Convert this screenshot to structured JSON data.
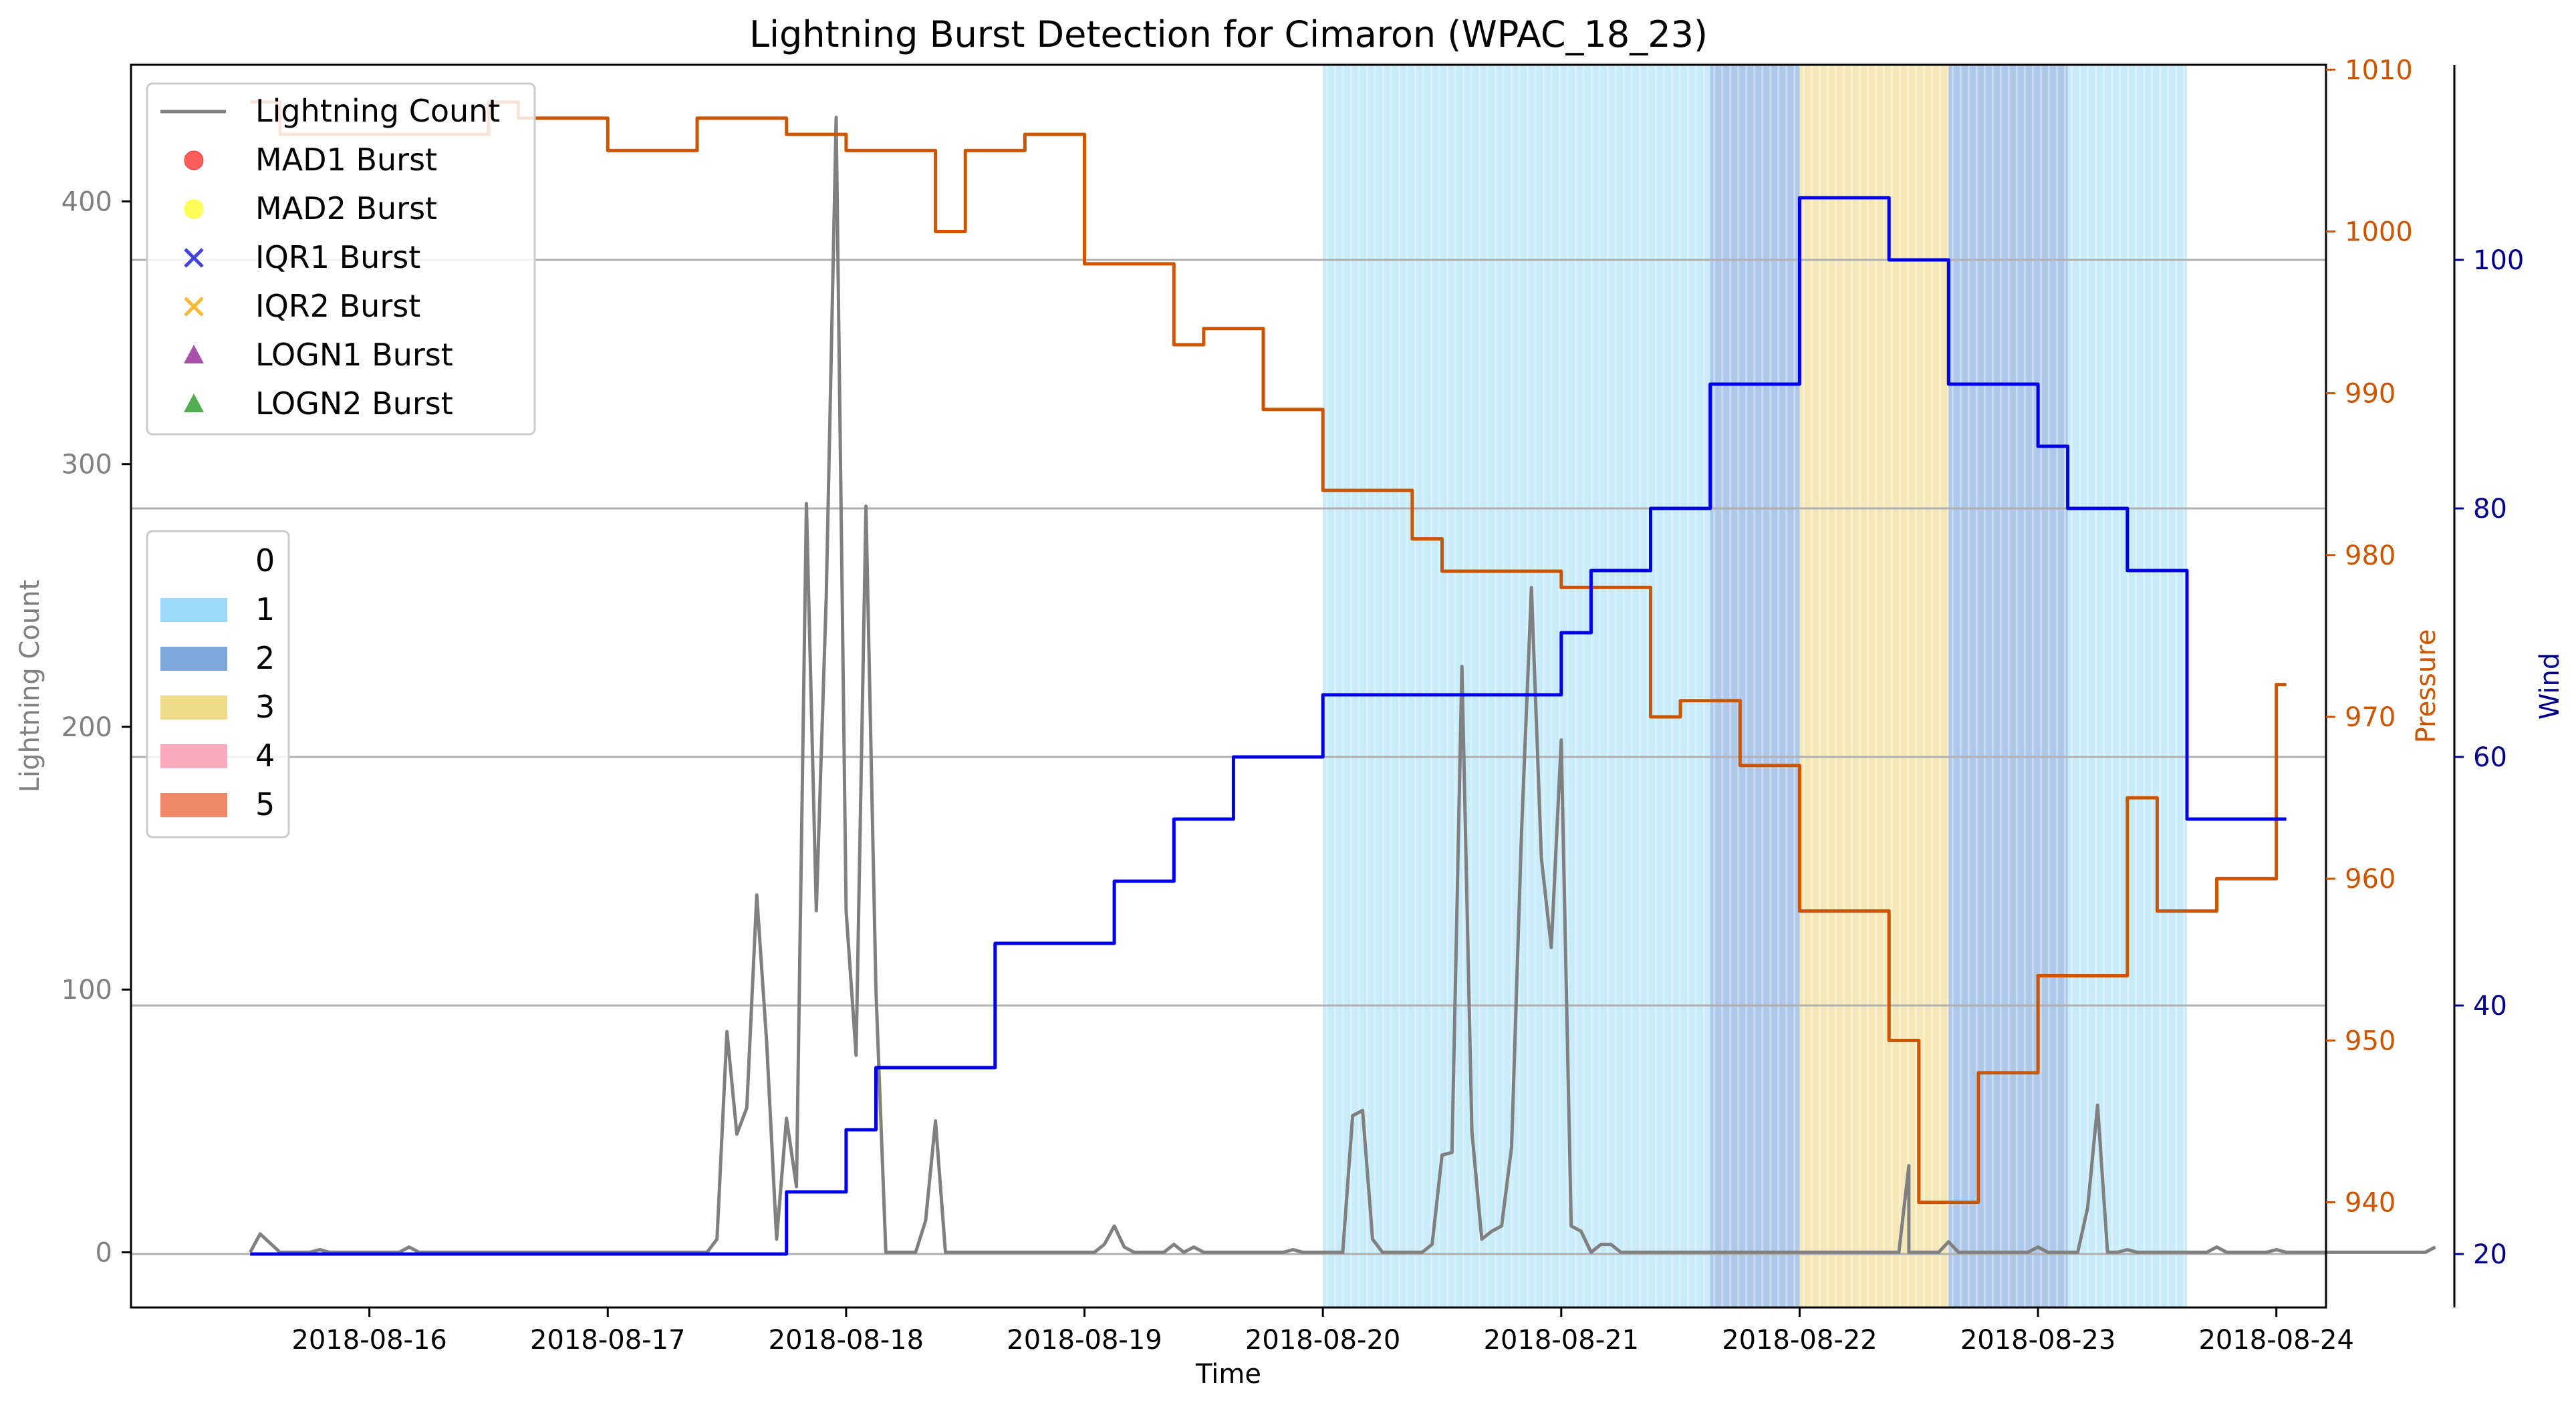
{
  "chart_data": {
    "type": "line",
    "title": "Lightning Burst Detection for Cimaron (WPAC_18_23)",
    "xlabel": "Time",
    "ylabel_left": "Lightning Count",
    "ylabel_pressure": "Pressure",
    "ylabel_wind": "Wind",
    "x_ticks": [
      "2018-08-16",
      "2018-08-17",
      "2018-08-18",
      "2018-08-19",
      "2018-08-20",
      "2018-08-21",
      "2018-08-22",
      "2018-08-23",
      "2018-08-24"
    ],
    "xlim": [
      "2018-08-15 00:00",
      "2018-08-24 05:00"
    ],
    "ylim_left": [
      -21,
      452
    ],
    "yticks_left": [
      0,
      100,
      200,
      300,
      400
    ],
    "ylim_pressure": [
      933.5,
      1010.3
    ],
    "yticks_pressure": [
      940,
      950,
      960,
      970,
      980,
      990,
      1000,
      1010
    ],
    "ylim_wind": [
      15.7,
      115.7
    ],
    "yticks_wind": [
      20,
      40,
      60,
      80,
      100
    ],
    "grid": "horizontal lines on wind axis",
    "colors": {
      "lightning": "#808080",
      "pressure": "#cc5500",
      "wind": "#0000e6",
      "cat1": "#87d4f5",
      "cat2": "#6a9bd8",
      "cat3": "#ecd98a",
      "cat4": "#f7a8b8",
      "cat5": "#ee8866"
    },
    "category_spans": [
      {
        "category": "1",
        "start": "2018-08-20 00:00",
        "end": "2018-08-21 15:00"
      },
      {
        "category": "2",
        "start": "2018-08-21 15:00",
        "end": "2018-08-22 00:00"
      },
      {
        "category": "3",
        "start": "2018-08-22 00:00",
        "end": "2018-08-22 15:00"
      },
      {
        "category": "2",
        "start": "2018-08-22 15:00",
        "end": "2018-08-23 03:00"
      },
      {
        "category": "1",
        "start": "2018-08-23 03:00",
        "end": "2018-08-23 15:00"
      }
    ],
    "series": [
      {
        "name": "Lightning Count",
        "axis": "left",
        "points": [
          [
            "2018-08-15 12:00",
            0
          ],
          [
            "2018-08-15 13:00",
            7
          ],
          [
            "2018-08-15 15:00",
            0
          ],
          [
            "2018-08-15 18:00",
            0
          ],
          [
            "2018-08-15 19:00",
            1
          ],
          [
            "2018-08-15 20:00",
            0
          ],
          [
            "2018-08-16 03:00",
            0
          ],
          [
            "2018-08-16 04:00",
            2
          ],
          [
            "2018-08-16 05:00",
            0
          ],
          [
            "2018-08-17 10:00",
            0
          ],
          [
            "2018-08-17 11:00",
            5
          ],
          [
            "2018-08-17 12:00",
            84
          ],
          [
            "2018-08-17 13:00",
            45
          ],
          [
            "2018-08-17 14:00",
            55
          ],
          [
            "2018-08-17 15:00",
            136
          ],
          [
            "2018-08-17 16:00",
            80
          ],
          [
            "2018-08-17 17:00",
            5
          ],
          [
            "2018-08-17 18:00",
            51
          ],
          [
            "2018-08-17 19:00",
            25
          ],
          [
            "2018-08-17 20:00",
            285
          ],
          [
            "2018-08-17 21:00",
            130
          ],
          [
            "2018-08-17 22:00",
            250
          ],
          [
            "2018-08-17 23:00",
            432
          ],
          [
            "2018-08-18 00:00",
            130
          ],
          [
            "2018-08-18 01:00",
            75
          ],
          [
            "2018-08-18 02:00",
            284
          ],
          [
            "2018-08-18 03:00",
            100
          ],
          [
            "2018-08-18 04:00",
            0
          ],
          [
            "2018-08-18 07:00",
            0
          ],
          [
            "2018-08-18 08:00",
            12
          ],
          [
            "2018-08-18 09:00",
            50
          ],
          [
            "2018-08-18 10:00",
            0
          ],
          [
            "2018-08-19 01:00",
            0
          ],
          [
            "2018-08-19 02:00",
            3
          ],
          [
            "2018-08-19 03:00",
            10
          ],
          [
            "2018-08-19 04:00",
            2
          ],
          [
            "2018-08-19 05:00",
            0
          ],
          [
            "2018-08-19 08:00",
            0
          ],
          [
            "2018-08-19 09:00",
            3
          ],
          [
            "2018-08-19 10:00",
            0
          ],
          [
            "2018-08-19 11:00",
            2
          ],
          [
            "2018-08-19 12:00",
            0
          ],
          [
            "2018-08-19 20:00",
            0
          ],
          [
            "2018-08-19 21:00",
            1
          ],
          [
            "2018-08-19 22:00",
            0
          ],
          [
            "2018-08-20 02:00",
            0
          ],
          [
            "2018-08-20 03:00",
            52
          ],
          [
            "2018-08-20 04:00",
            54
          ],
          [
            "2018-08-20 05:00",
            5
          ],
          [
            "2018-08-20 06:00",
            0
          ],
          [
            "2018-08-20 10:00",
            0
          ],
          [
            "2018-08-20 11:00",
            3
          ],
          [
            "2018-08-20 12:00",
            37
          ],
          [
            "2018-08-20 13:00",
            38
          ],
          [
            "2018-08-20 14:00",
            223
          ],
          [
            "2018-08-20 15:00",
            46
          ],
          [
            "2018-08-20 16:00",
            5
          ],
          [
            "2018-08-20 17:00",
            8
          ],
          [
            "2018-08-20 18:00",
            10
          ],
          [
            "2018-08-20 19:00",
            40
          ],
          [
            "2018-08-20 20:00",
            160
          ],
          [
            "2018-08-20 21:00",
            253
          ],
          [
            "2018-08-20 22:00",
            150
          ],
          [
            "2018-08-20 23:00",
            116
          ],
          [
            "2018-08-21 00:00",
            195
          ],
          [
            "2018-08-21 01:00",
            10
          ],
          [
            "2018-08-21 02:00",
            8
          ],
          [
            "2018-08-21 03:00",
            0
          ],
          [
            "2018-08-21 04:00",
            3
          ],
          [
            "2018-08-21 05:00",
            3
          ],
          [
            "2018-08-21 06:00",
            0
          ],
          [
            "2018-08-22 10:00",
            0
          ],
          [
            "2018-08-22 11:00",
            33
          ],
          [
            "2018-08-22 12:00",
            0
          ],
          [
            "2018-08-22 14:00",
            0
          ],
          [
            "2018-08-22 15:00",
            4
          ],
          [
            "2018-08-22 16:00",
            0
          ],
          [
            "2018-08-23 03:00",
            0
          ],
          [
            "2018-08-23 04:00",
            0
          ],
          [
            "2018-08-23 05:00",
            17
          ],
          [
            "2018-08-23 06:00",
            56
          ],
          [
            "2018-08-23 07:00",
            0
          ],
          [
            "2018-08-23 08:00",
            0
          ],
          [
            "2018-08-23 09:00",
            1
          ],
          [
            "2018-08-23 10:00",
            0
          ],
          [
            "2018-08-23 17:00",
            0
          ],
          [
            "2018-08-23 18:00",
            2
          ],
          [
            "2018-08-23 19:00",
            0
          ],
          [
            "2018-08-22 11:00",
            0
          ],
          [
            "2018-08-22 12:00",
            0
          ],
          [
            "2018-08-22 23:00",
            0
          ],
          [
            "2018-08-23 00:00",
            2
          ],
          [
            "2018-08-23 01:00",
            0
          ],
          [
            "2018-08-23 23:00",
            0
          ],
          [
            "2018-08-24 00:00",
            1
          ],
          [
            "2018-08-24 01:00",
            0
          ],
          [
            "2018-08-24 15:00",
            0
          ],
          [
            "2018-08-24 16:00",
            2
          ]
        ]
      },
      {
        "name": "Pressure",
        "axis": "pressure",
        "points": [
          [
            "2018-08-15 12:00",
            1008
          ],
          [
            "2018-08-15 15:00",
            1008
          ],
          [
            "2018-08-15 15:00",
            1006
          ],
          [
            "2018-08-16 12:00",
            1006
          ],
          [
            "2018-08-16 12:00",
            1008
          ],
          [
            "2018-08-16 15:00",
            1008
          ],
          [
            "2018-08-16 15:00",
            1007
          ],
          [
            "2018-08-16 18:00",
            1007
          ],
          [
            "2018-08-17 00:00",
            1007
          ],
          [
            "2018-08-17 00:00",
            1005
          ],
          [
            "2018-08-17 09:00",
            1005
          ],
          [
            "2018-08-17 09:00",
            1007
          ],
          [
            "2018-08-17 18:00",
            1007
          ],
          [
            "2018-08-17 18:00",
            1006
          ],
          [
            "2018-08-18 00:00",
            1006
          ],
          [
            "2018-08-18 00:00",
            1005
          ],
          [
            "2018-08-18 09:00",
            1005
          ],
          [
            "2018-08-18 09:00",
            1000
          ],
          [
            "2018-08-18 12:00",
            1000
          ],
          [
            "2018-08-18 12:00",
            1005
          ],
          [
            "2018-08-18 18:00",
            1005
          ],
          [
            "2018-08-18 18:00",
            1006
          ],
          [
            "2018-08-19 00:00",
            1006
          ],
          [
            "2018-08-19 00:00",
            998
          ],
          [
            "2018-08-19 09:00",
            998
          ],
          [
            "2018-08-19 09:00",
            993
          ],
          [
            "2018-08-19 12:00",
            993
          ],
          [
            "2018-08-19 12:00",
            994
          ],
          [
            "2018-08-19 18:00",
            994
          ],
          [
            "2018-08-19 18:00",
            989
          ],
          [
            "2018-08-20 00:00",
            989
          ],
          [
            "2018-08-20 00:00",
            984
          ],
          [
            "2018-08-20 09:00",
            984
          ],
          [
            "2018-08-20 09:00",
            981
          ],
          [
            "2018-08-20 12:00",
            981
          ],
          [
            "2018-08-20 12:00",
            979
          ],
          [
            "2018-08-21 00:00",
            979
          ],
          [
            "2018-08-21 00:00",
            978
          ],
          [
            "2018-08-21 09:00",
            978
          ],
          [
            "2018-08-21 09:00",
            970
          ],
          [
            "2018-08-21 12:00",
            970
          ],
          [
            "2018-08-21 12:00",
            971
          ],
          [
            "2018-08-21 18:00",
            971
          ],
          [
            "2018-08-21 18:00",
            967
          ],
          [
            "2018-08-22 00:00",
            967
          ],
          [
            "2018-08-22 00:00",
            958
          ],
          [
            "2018-08-22 09:00",
            958
          ],
          [
            "2018-08-22 09:00",
            950
          ],
          [
            "2018-08-22 12:00",
            950
          ],
          [
            "2018-08-22 12:00",
            940
          ],
          [
            "2018-08-22 18:00",
            940
          ],
          [
            "2018-08-22 18:00",
            948
          ],
          [
            "2018-08-23 00:00",
            948
          ],
          [
            "2018-08-23 00:00",
            954
          ],
          [
            "2018-08-23 09:00",
            954
          ],
          [
            "2018-08-23 09:00",
            965
          ],
          [
            "2018-08-23 12:00",
            965
          ],
          [
            "2018-08-23 12:00",
            958
          ],
          [
            "2018-08-23 18:00",
            958
          ],
          [
            "2018-08-23 18:00",
            960
          ],
          [
            "2018-08-24 00:00",
            960
          ],
          [
            "2018-08-24 00:00",
            972
          ],
          [
            "2018-08-24 01:00",
            972
          ]
        ]
      },
      {
        "name": "Wind",
        "axis": "wind",
        "points": [
          [
            "2018-08-15 12:00",
            20
          ],
          [
            "2018-08-17 18:00",
            20
          ],
          [
            "2018-08-17 18:00",
            25
          ],
          [
            "2018-08-18 00:00",
            25
          ],
          [
            "2018-08-18 00:00",
            30
          ],
          [
            "2018-08-18 03:00",
            30
          ],
          [
            "2018-08-18 03:00",
            35
          ],
          [
            "2018-08-18 15:00",
            35
          ],
          [
            "2018-08-18 15:00",
            45
          ],
          [
            "2018-08-19 03:00",
            45
          ],
          [
            "2018-08-19 03:00",
            50
          ],
          [
            "2018-08-19 09:00",
            50
          ],
          [
            "2018-08-19 09:00",
            55
          ],
          [
            "2018-08-19 15:00",
            55
          ],
          [
            "2018-08-19 15:00",
            60
          ],
          [
            "2018-08-20 00:00",
            60
          ],
          [
            "2018-08-20 00:00",
            65
          ],
          [
            "2018-08-21 00:00",
            65
          ],
          [
            "2018-08-21 00:00",
            70
          ],
          [
            "2018-08-21 03:00",
            70
          ],
          [
            "2018-08-21 03:00",
            75
          ],
          [
            "2018-08-21 09:00",
            75
          ],
          [
            "2018-08-21 09:00",
            80
          ],
          [
            "2018-08-21 15:00",
            80
          ],
          [
            "2018-08-21 15:00",
            90
          ],
          [
            "2018-08-22 00:00",
            90
          ],
          [
            "2018-08-22 00:00",
            105
          ],
          [
            "2018-08-22 09:00",
            105
          ],
          [
            "2018-08-22 09:00",
            100
          ],
          [
            "2018-08-22 15:00",
            100
          ],
          [
            "2018-08-22 15:00",
            90
          ],
          [
            "2018-08-23 00:00",
            90
          ],
          [
            "2018-08-23 00:00",
            85
          ],
          [
            "2018-08-23 03:00",
            85
          ],
          [
            "2018-08-23 03:00",
            80
          ],
          [
            "2018-08-23 09:00",
            80
          ],
          [
            "2018-08-23 09:00",
            75
          ],
          [
            "2018-08-23 15:00",
            75
          ],
          [
            "2018-08-23 15:00",
            55
          ],
          [
            "2018-08-24 01:00",
            55
          ]
        ]
      }
    ],
    "legend_top": {
      "placement": "upper-left",
      "entries": [
        "Lightning Count",
        "MAD1 Burst",
        "MAD2 Burst",
        "IQR1 Burst",
        "IQR2 Burst",
        "LOGN1 Burst",
        "LOGN2 Burst"
      ]
    },
    "legend_categories": {
      "placement": "middle-left",
      "entries": [
        "0",
        "1",
        "2",
        "3",
        "4",
        "5"
      ]
    }
  }
}
